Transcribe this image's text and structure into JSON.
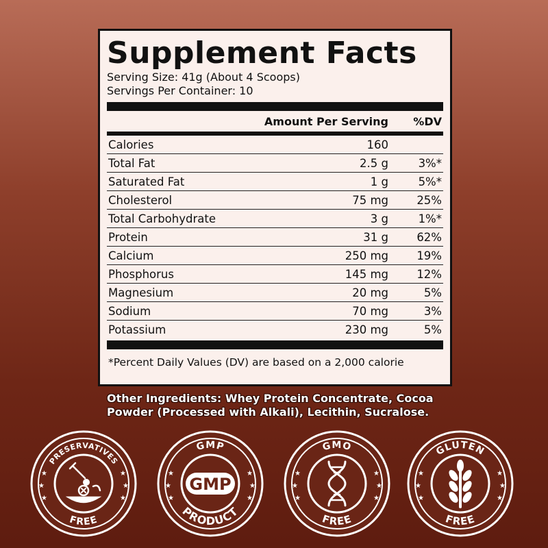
{
  "panel": {
    "title": "Supplement Facts",
    "serving_size": "Serving Size: 41g (About 4 Scoops)",
    "servings_per_container": "Servings Per Container: 10",
    "header_amount": "Amount Per Serving",
    "header_dv": "%DV",
    "rows": [
      {
        "name": "Calories",
        "amount": "160",
        "dv": ""
      },
      {
        "name": "Total Fat",
        "amount": "2.5 g",
        "dv": "3%*"
      },
      {
        "name": "Saturated Fat",
        "amount": "1 g",
        "dv": "5%*"
      },
      {
        "name": "Cholesterol",
        "amount": "75 mg",
        "dv": "25%"
      },
      {
        "name": "Total Carbohydrate",
        "amount": "3 g",
        "dv": "1%*"
      },
      {
        "name": "Protein",
        "amount": "31 g",
        "dv": "62%"
      },
      {
        "name": "Calcium",
        "amount": "250 mg",
        "dv": "19%"
      },
      {
        "name": "Phosphorus",
        "amount": "145 mg",
        "dv": "12%"
      },
      {
        "name": "Magnesium",
        "amount": "20 mg",
        "dv": "5%"
      },
      {
        "name": "Sodium",
        "amount": "70 mg",
        "dv": "3%"
      },
      {
        "name": "Potassium",
        "amount": "230 mg",
        "dv": "5%"
      }
    ],
    "footnote": "*Percent Daily Values (DV) are based on a 2,000 calorie"
  },
  "ingredients": {
    "line1": "Other Ingredients: Whey Protein Concentrate, Cocoa",
    "line2": "Powder (Processed with Alkali), Lecithin, Sucralose."
  },
  "badges": [
    {
      "top": "PRESERVATIVES",
      "bottom": "FREE",
      "icon": "preservatives-icon"
    },
    {
      "top": "GMP",
      "center": "GMP",
      "bottom": "PRODUCT",
      "icon": "gmp-icon"
    },
    {
      "top": "GMO",
      "bottom": "FREE",
      "icon": "dna-icon"
    },
    {
      "top": "GLUTEN",
      "bottom": "FREE",
      "icon": "wheat-icon"
    }
  ],
  "colors": {
    "badge_fill": "#6a2516",
    "badge_ring": "#ffffff",
    "panel_bg": "#fbf0ec"
  }
}
